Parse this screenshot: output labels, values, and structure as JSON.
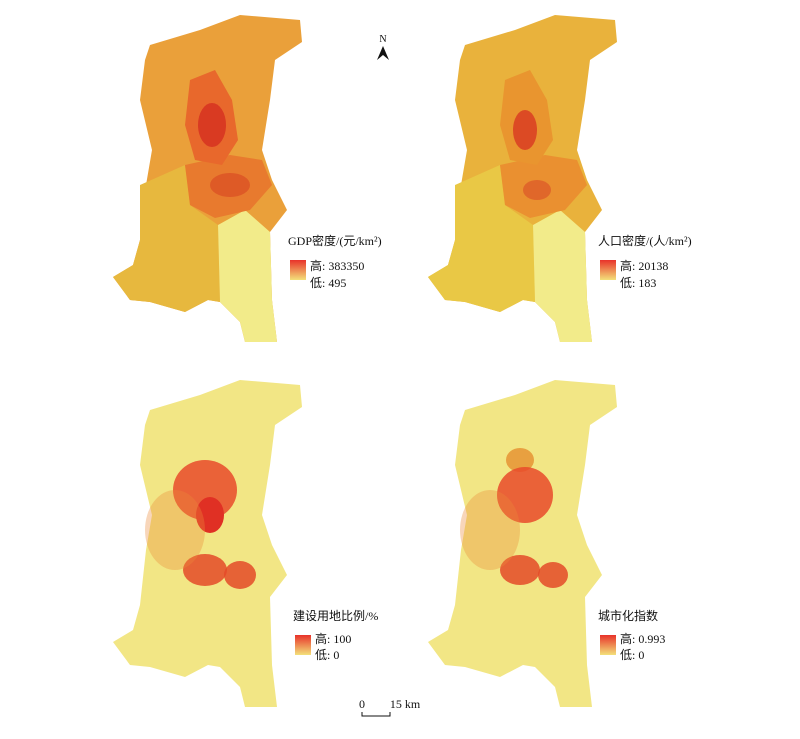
{
  "north": "N",
  "scale": {
    "start": "0",
    "end": "15 km"
  },
  "panels": [
    {
      "title": "GDP密度/(元/km²)",
      "high": "高: 383350",
      "low": "低: 495"
    },
    {
      "title": "人口密度/(人/km²)",
      "high": "高: 20138",
      "low": "低: 183"
    },
    {
      "title": "建设用地比例/%",
      "high": "高: 100",
      "low": "低: 0"
    },
    {
      "title": "城市化指数",
      "high": "高: 0.993",
      "low": "低: 0"
    }
  ]
}
